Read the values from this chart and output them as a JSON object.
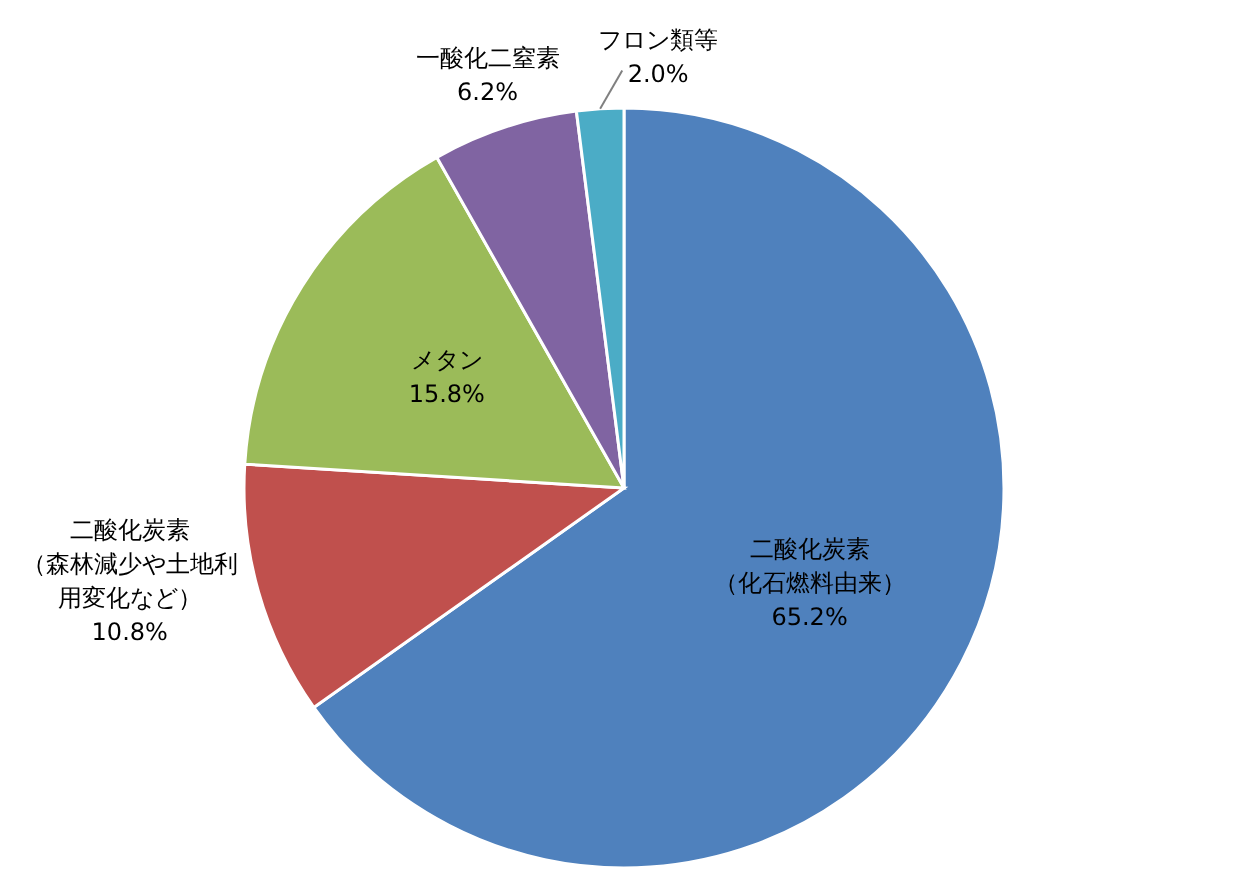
{
  "chart_data": {
    "type": "pie",
    "categories": [
      "二酸化炭素（化石燃料由来）",
      "二酸化炭素（森林減少や土地利用変化など）",
      "メタン",
      "一酸化二窒素",
      "フロン類等"
    ],
    "values": [
      65.2,
      10.8,
      15.8,
      6.2,
      2.0
    ],
    "colors": [
      "#4f81bd",
      "#c0504d",
      "#9bbb59",
      "#8064a2",
      "#4bacc6"
    ],
    "value_labels": [
      "65.2%",
      "10.8%",
      "15.8%",
      "6.2%",
      "2.0%"
    ]
  }
}
